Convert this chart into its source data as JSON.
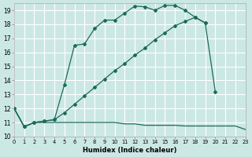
{
  "xlabel": "Humidex (Indice chaleur)",
  "bg_color": "#cce8e4",
  "grid_color": "#b8d8d4",
  "line_color": "#1a6b5a",
  "xlim": [
    0,
    23
  ],
  "ylim": [
    10,
    19.5
  ],
  "yticks": [
    10,
    11,
    12,
    13,
    14,
    15,
    16,
    17,
    18,
    19
  ],
  "xticks": [
    0,
    1,
    2,
    3,
    4,
    5,
    6,
    7,
    8,
    9,
    10,
    11,
    12,
    13,
    14,
    15,
    16,
    17,
    18,
    19,
    20,
    21,
    22,
    23
  ],
  "s1x": [
    0,
    1,
    2,
    3,
    4,
    5,
    6,
    7,
    8,
    9,
    10,
    11,
    12,
    13,
    14,
    15,
    16,
    17,
    18,
    19
  ],
  "s1y": [
    12.0,
    10.7,
    11.0,
    11.1,
    11.2,
    13.7,
    16.5,
    16.6,
    17.7,
    18.3,
    18.3,
    18.8,
    19.3,
    19.25,
    19.0,
    19.35,
    19.35,
    19.0,
    18.5,
    18.1
  ],
  "s2x": [
    0,
    1,
    2,
    3,
    4,
    5,
    6,
    7,
    8,
    9,
    10,
    11,
    12,
    13,
    14,
    15,
    16,
    17,
    18,
    19,
    20
  ],
  "s2y": [
    12.0,
    10.7,
    11.0,
    11.1,
    11.2,
    11.7,
    12.3,
    12.9,
    13.5,
    14.1,
    14.7,
    15.2,
    15.8,
    16.3,
    16.9,
    17.4,
    17.9,
    18.2,
    18.5,
    18.1,
    13.2
  ],
  "s3x": [
    0,
    1,
    2,
    3,
    4,
    5,
    6,
    7,
    8,
    9,
    10,
    11,
    12,
    13,
    14,
    15,
    16,
    17,
    18,
    19,
    20,
    21,
    22,
    23
  ],
  "s3y": [
    12.0,
    10.7,
    11.0,
    11.0,
    11.0,
    11.0,
    11.0,
    11.0,
    11.0,
    11.0,
    11.0,
    10.9,
    10.9,
    10.8,
    10.8,
    10.8,
    10.8,
    10.75,
    10.75,
    10.75,
    10.75,
    10.75,
    10.75,
    10.5
  ]
}
